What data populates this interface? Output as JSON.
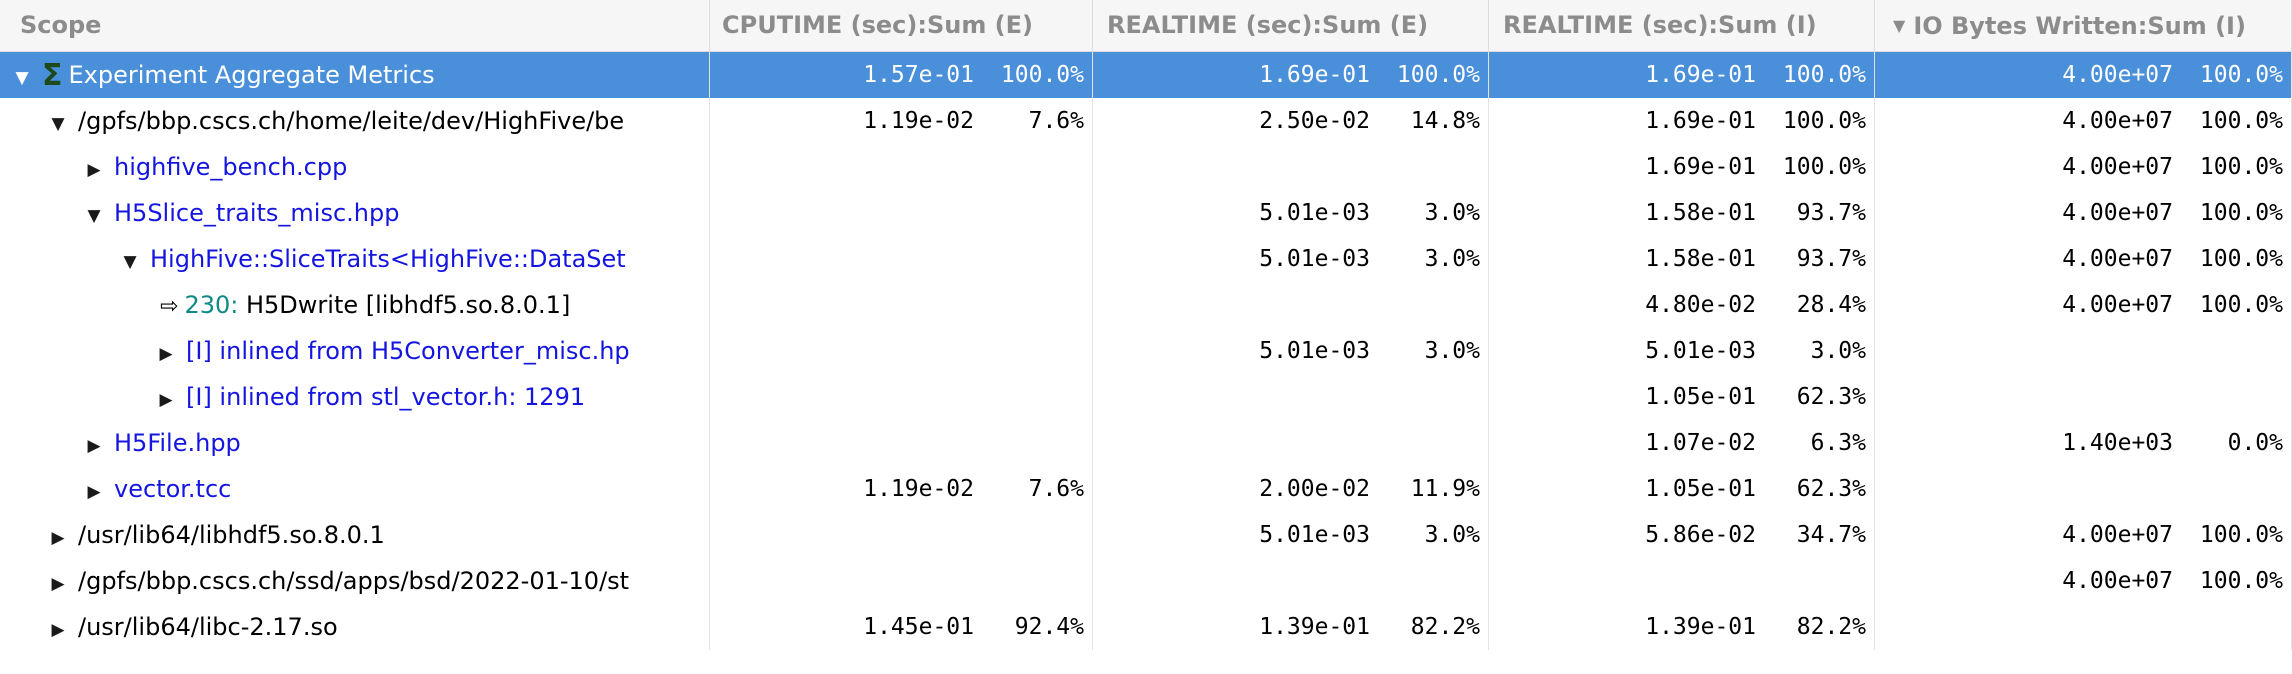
{
  "columns": [
    {
      "label": "Scope"
    },
    {
      "label": "CPUTIME (sec):Sum (E)"
    },
    {
      "label": "REALTIME (sec):Sum (E)"
    },
    {
      "label": "REALTIME (sec):Sum (I)"
    },
    {
      "label": "IO Bytes Written:Sum (I)",
      "sort": "descending"
    }
  ],
  "rows": [
    {
      "scope": "Experiment Aggregate Metrics",
      "icon": "sigma-icon",
      "toggle": "expanded",
      "cpu_e": [
        "1.57e-01",
        "100.0%"
      ],
      "real_e": [
        "1.69e-01",
        "100.0%"
      ],
      "real_i": [
        "1.69e-01",
        "100.0%"
      ],
      "io_i": [
        "4.00e+07",
        "100.0%"
      ]
    },
    {
      "scope": "/gpfs/bbp.cscs.ch/home/leite/dev/HighFive/be",
      "toggle": "expanded",
      "cpu_e": [
        "1.19e-02",
        "7.6%"
      ],
      "real_e": [
        "2.50e-02",
        "14.8%"
      ],
      "real_i": [
        "1.69e-01",
        "100.0%"
      ],
      "io_i": [
        "4.00e+07",
        "100.0%"
      ]
    },
    {
      "scope": "highfive_bench.cpp",
      "toggle": "collapsed",
      "cpu_e": [
        "",
        ""
      ],
      "real_e": [
        "",
        ""
      ],
      "real_i": [
        "1.69e-01",
        "100.0%"
      ],
      "io_i": [
        "4.00e+07",
        "100.0%"
      ]
    },
    {
      "scope": "H5Slice_traits_misc.hpp",
      "toggle": "expanded",
      "cpu_e": [
        "",
        ""
      ],
      "real_e": [
        "5.01e-03",
        "3.0%"
      ],
      "real_i": [
        "1.58e-01",
        "93.7%"
      ],
      "io_i": [
        "4.00e+07",
        "100.0%"
      ]
    },
    {
      "scope": "HighFive::SliceTraits<HighFive::DataSet",
      "toggle": "expanded",
      "cpu_e": [
        "",
        ""
      ],
      "real_e": [
        "5.01e-03",
        "3.0%"
      ],
      "real_i": [
        "1.58e-01",
        "93.7%"
      ],
      "io_i": [
        "4.00e+07",
        "100.0%"
      ]
    },
    {
      "line": "230:",
      "scope": "H5Dwrite [libhdf5.so.8.0.1]",
      "icon": "callsite-icon",
      "toggle": "none",
      "cpu_e": [
        "",
        ""
      ],
      "real_e": [
        "",
        ""
      ],
      "real_i": [
        "4.80e-02",
        "28.4%"
      ],
      "io_i": [
        "4.00e+07",
        "100.0%"
      ]
    },
    {
      "scope": "[I] inlined from H5Converter_misc.hp",
      "toggle": "collapsed",
      "cpu_e": [
        "",
        ""
      ],
      "real_e": [
        "5.01e-03",
        "3.0%"
      ],
      "real_i": [
        "5.01e-03",
        "3.0%"
      ],
      "io_i": [
        "",
        ""
      ]
    },
    {
      "scope": "[I] inlined from stl_vector.h: 1291",
      "toggle": "collapsed",
      "cpu_e": [
        "",
        ""
      ],
      "real_e": [
        "",
        ""
      ],
      "real_i": [
        "1.05e-01",
        "62.3%"
      ],
      "io_i": [
        "",
        ""
      ]
    },
    {
      "scope": "H5File.hpp",
      "toggle": "collapsed",
      "cpu_e": [
        "",
        ""
      ],
      "real_e": [
        "",
        ""
      ],
      "real_i": [
        "1.07e-02",
        "6.3%"
      ],
      "io_i": [
        "1.40e+03",
        "0.0%"
      ]
    },
    {
      "scope": "vector.tcc",
      "toggle": "collapsed",
      "cpu_e": [
        "1.19e-02",
        "7.6%"
      ],
      "real_e": [
        "2.00e-02",
        "11.9%"
      ],
      "real_i": [
        "1.05e-01",
        "62.3%"
      ],
      "io_i": [
        "",
        ""
      ]
    },
    {
      "scope": "/usr/lib64/libhdf5.so.8.0.1",
      "toggle": "collapsed",
      "cpu_e": [
        "",
        ""
      ],
      "real_e": [
        "5.01e-03",
        "3.0%"
      ],
      "real_i": [
        "5.86e-02",
        "34.7%"
      ],
      "io_i": [
        "4.00e+07",
        "100.0%"
      ]
    },
    {
      "scope": "/gpfs/bbp.cscs.ch/ssd/apps/bsd/2022-01-10/st",
      "toggle": "collapsed",
      "cpu_e": [
        "",
        ""
      ],
      "real_e": [
        "",
        ""
      ],
      "real_i": [
        "",
        ""
      ],
      "io_i": [
        "4.00e+07",
        "100.0%"
      ]
    },
    {
      "scope": "/usr/lib64/libc-2.17.so",
      "toggle": "collapsed",
      "cpu_e": [
        "1.45e-01",
        "92.4%"
      ],
      "real_e": [
        "1.39e-01",
        "82.2%"
      ],
      "real_i": [
        "1.39e-01",
        "82.2%"
      ],
      "io_i": [
        "",
        ""
      ]
    }
  ]
}
